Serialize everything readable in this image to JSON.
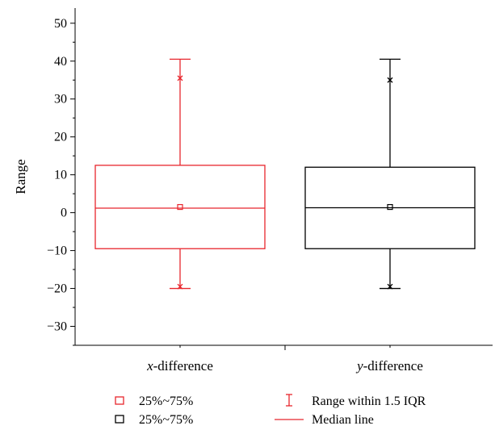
{
  "chart_data": {
    "type": "box",
    "title": "",
    "xlabel": "",
    "ylabel": "Range",
    "ylim": [
      -35,
      54
    ],
    "yticks": [
      -30,
      -20,
      -10,
      0,
      10,
      20,
      30,
      40,
      50
    ],
    "grid": false,
    "categories": [
      {
        "var": "x",
        "rest": "-difference"
      },
      {
        "var": "y",
        "rest": "-difference"
      }
    ],
    "boxes": [
      {
        "color": "#e8262d",
        "whisker_low": -20,
        "q1": -9.5,
        "median": 1.2,
        "mean": 1.5,
        "q3": 12.5,
        "whisker_high": 40.5,
        "max_marker": 35.5,
        "min_marker": -19.5
      },
      {
        "color": "#000000",
        "whisker_low": -20,
        "q1": -9.5,
        "median": 1.3,
        "mean": 1.5,
        "q3": 12,
        "whisker_high": 40.5,
        "max_marker": 35,
        "min_marker": -19.5
      }
    ],
    "legend": {
      "placement": "bottom",
      "items": [
        {
          "label": "25%~75%",
          "symbol": "box",
          "color": "#e8262d"
        },
        {
          "label": "25%~75%",
          "symbol": "box",
          "color": "#000000"
        },
        {
          "label": "Range within 1.5 IQR",
          "symbol": "whisker",
          "color": "#e8262d"
        },
        {
          "label": "Median line",
          "symbol": "line",
          "color": "#e8262d"
        }
      ]
    }
  }
}
